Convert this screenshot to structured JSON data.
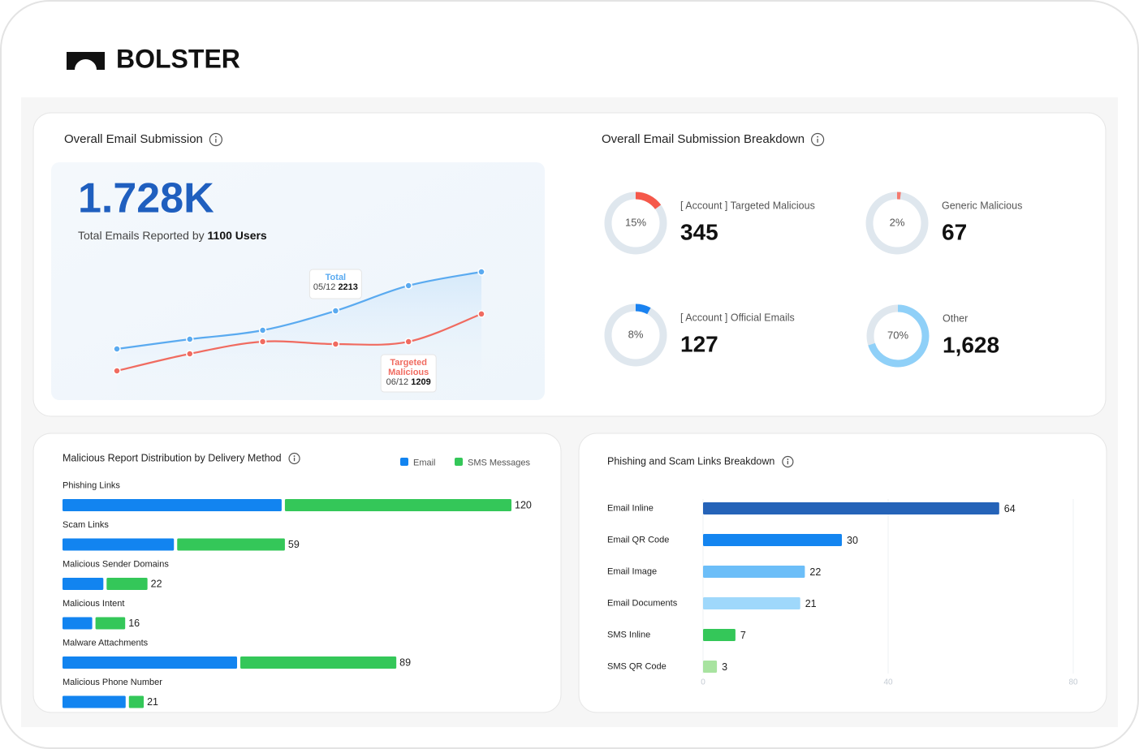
{
  "brand": "BOLSTER",
  "email_submission": {
    "title": "Overall Email Submission",
    "total": "1.728K",
    "subtitle": "Total Emails Reported by",
    "users": "1100 Users",
    "chart_data": {
      "type": "line",
      "x": [
        null,
        null,
        null,
        "05/12",
        "06/12",
        null
      ],
      "series": [
        {
          "name": "Total",
          "color": "#5aaaf0",
          "values": [
            972,
            1289,
            1580,
            2213,
            3033,
            3482
          ]
        },
        {
          "name": "Targeted Malicious",
          "color": "#f06b60",
          "values": [
            259,
            814,
            1210,
            1131,
            1209,
            2111
          ]
        }
      ]
    }
  },
  "breakdown": {
    "title": "Overall Email Submission Breakdown",
    "items": [
      {
        "label": "[ Account ] Targeted Malicious",
        "percent": 15,
        "percent_label": "15%",
        "value": 345,
        "color": "#f5584a"
      },
      {
        "label": "Generic Malicious",
        "percent": 2,
        "percent_label": "2%",
        "value": 67,
        "color": "#f47a6f"
      },
      {
        "label": "[ Account ] Official Emails",
        "percent": 8,
        "percent_label": "8%",
        "value": 127,
        "color": "#1a82f0"
      },
      {
        "label": "Other",
        "percent": 70,
        "percent_label": "70%",
        "value": 1628,
        "value_label": "1,628",
        "color": "#8fd0f8"
      }
    ]
  },
  "delivery": {
    "title": "Malicious Report Distribution by Delivery Method",
    "chart_data": {
      "type": "bar",
      "categories": [
        "Phishing Links",
        "Scam Links",
        "Malicious Sender Domains",
        "Malicious Intent",
        "Malware Attachments",
        "Malicious Phone Number"
      ],
      "series": [
        {
          "name": "Email",
          "color": "#1284f0",
          "values": [
            59,
            30,
            11,
            8,
            47,
            17
          ]
        },
        {
          "name": "SMS Messages",
          "color": "#34c759",
          "values": [
            61,
            29,
            11,
            8,
            42,
            4
          ]
        }
      ],
      "totals": [
        120,
        59,
        22,
        16,
        89,
        21
      ]
    }
  },
  "links": {
    "title": "Phishing and Scam Links Breakdown",
    "chart_data": {
      "type": "bar",
      "categories": [
        "Email Inline",
        "Email QR Code",
        "Email Image",
        "Email Documents",
        "SMS Inline",
        "SMS QR Code"
      ],
      "values": [
        64,
        30,
        22,
        21,
        7,
        3
      ],
      "colors": [
        "#2563b8",
        "#1485f0",
        "#6cbef8",
        "#9fd8fb",
        "#34c759",
        "#a8e3a0"
      ],
      "xlim": [
        0,
        80
      ],
      "xticks": [
        0,
        40,
        80
      ],
      "grid": true
    }
  }
}
